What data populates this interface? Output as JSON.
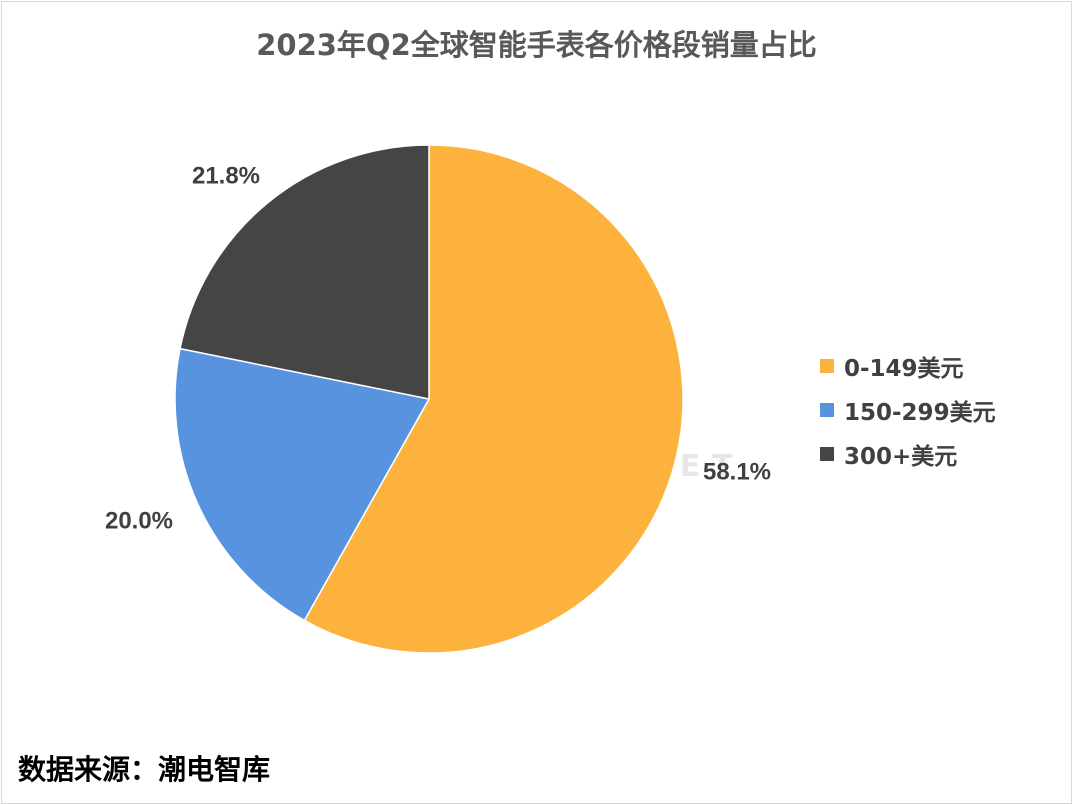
{
  "chart_data": {
    "type": "pie",
    "title": "2023年Q2全球智能手表各价格段销量占比",
    "slices": [
      {
        "label": "0-149美元",
        "value": 58.1,
        "display": "58.1%",
        "color": "#FDB23D"
      },
      {
        "label": "150-299美元",
        "value": 20.0,
        "display": "20.0%",
        "color": "#5893E0"
      },
      {
        "label": "300+美元",
        "value": 21.8,
        "display": "21.8%",
        "color": "#454545"
      }
    ],
    "legend_position": "right"
  },
  "watermark": {
    "cn": "潮电智库",
    "en": "ELECTREND.NET"
  },
  "source": "数据来源：潮电智库"
}
